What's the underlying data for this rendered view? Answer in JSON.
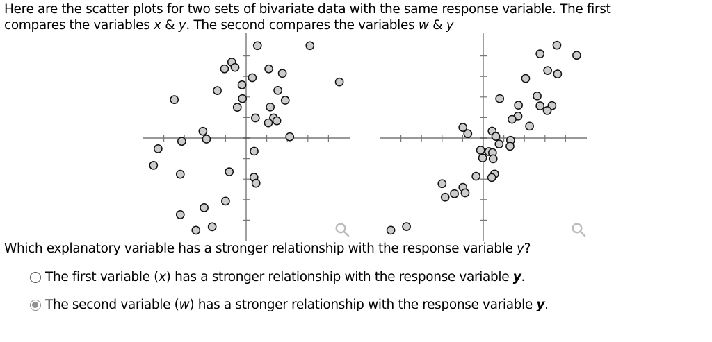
{
  "intro": {
    "line1": "Here are the scatter plots for two sets of bivariate data with the same response variable. The first",
    "line2_prefix": "compares the variables ",
    "line2_var1": "x",
    "line2_amp1": " & ",
    "line2_var2": "y",
    "line2_mid": ". The second compares the variables ",
    "line2_var3": "w",
    "line2_amp2": " & ",
    "line2_var4": "y"
  },
  "question": {
    "text_prefix": "Which explanatory variable has a stronger relationship with the response variable ",
    "text_var": "y",
    "text_suffix": "?"
  },
  "options": [
    {
      "prefix": "The first variable (",
      "var": "x",
      "suffix": ") has a stronger relationship with the response variable ",
      "resp": "y",
      "end": ".",
      "selected": false
    },
    {
      "prefix": "The second variable (",
      "var": "w",
      "suffix": ") has a stronger relationship with the response variable ",
      "resp": "y",
      "end": ".",
      "selected": true
    }
  ],
  "icons": {
    "zoom_plot1": "magnifier-icon",
    "zoom_plot2": "magnifier-icon"
  },
  "colors": {
    "marker_fill": "#cccccc",
    "marker_stroke": "#111111",
    "axis": "#777777",
    "radio_selected": "#8f8f8f",
    "zoom_icon": "#bbbbbb"
  },
  "chart_data": [
    {
      "type": "scatter",
      "title": "",
      "xlabel": "x",
      "ylabel": "y",
      "xlim": [
        -5,
        5
      ],
      "ylim": [
        -5,
        5
      ],
      "grid": false,
      "axes_through_origin": true,
      "tick_spacing": 1,
      "tick_labels": false,
      "points": [
        [
          0.55,
          4.5
        ],
        [
          3.1,
          4.5
        ],
        [
          -0.7,
          3.7
        ],
        [
          -1.05,
          3.37
        ],
        [
          -0.54,
          3.44
        ],
        [
          1.1,
          3.37
        ],
        [
          1.76,
          3.15
        ],
        [
          0.3,
          2.94
        ],
        [
          4.53,
          2.73
        ],
        [
          -0.2,
          2.59
        ],
        [
          -1.4,
          2.31
        ],
        [
          1.54,
          2.32
        ],
        [
          -3.49,
          1.87
        ],
        [
          -0.18,
          1.92
        ],
        [
          1.9,
          1.84
        ],
        [
          -0.43,
          1.5
        ],
        [
          1.17,
          1.51
        ],
        [
          0.45,
          0.98
        ],
        [
          1.33,
          0.98
        ],
        [
          1.49,
          0.84
        ],
        [
          1.08,
          0.74
        ],
        [
          -2.1,
          0.33
        ],
        [
          -1.93,
          -0.05
        ],
        [
          -3.13,
          -0.16
        ],
        [
          2.12,
          0.06
        ],
        [
          -4.28,
          -0.52
        ],
        [
          0.39,
          -0.64
        ],
        [
          -4.5,
          -1.33
        ],
        [
          -3.2,
          -1.76
        ],
        [
          -0.82,
          -1.64
        ],
        [
          0.38,
          -1.91
        ],
        [
          0.48,
          -2.2
        ],
        [
          -1.0,
          -3.07
        ],
        [
          -2.04,
          -3.39
        ],
        [
          -3.2,
          -3.73
        ],
        [
          -1.65,
          -4.32
        ],
        [
          -2.44,
          -4.49
        ]
      ]
    },
    {
      "type": "scatter",
      "title": "",
      "xlabel": "w",
      "ylabel": "y",
      "xlim": [
        -5,
        5
      ],
      "ylim": [
        -5,
        5
      ],
      "grid": false,
      "axes_through_origin": true,
      "tick_spacing": 1,
      "tick_labels": false,
      "points": [
        [
          3.58,
          4.52
        ],
        [
          4.54,
          4.03
        ],
        [
          2.76,
          4.1
        ],
        [
          3.13,
          3.29
        ],
        [
          3.61,
          3.12
        ],
        [
          2.06,
          2.9
        ],
        [
          0.8,
          1.92
        ],
        [
          2.62,
          2.05
        ],
        [
          1.71,
          1.6
        ],
        [
          2.76,
          1.57
        ],
        [
          3.34,
          1.58
        ],
        [
          3.11,
          1.34
        ],
        [
          1.69,
          1.07
        ],
        [
          1.4,
          0.91
        ],
        [
          2.25,
          0.58
        ],
        [
          -0.99,
          0.52
        ],
        [
          -0.75,
          0.21
        ],
        [
          0.43,
          0.34
        ],
        [
          0.61,
          0.08
        ],
        [
          0.77,
          -0.29
        ],
        [
          1.33,
          -0.11
        ],
        [
          1.3,
          -0.4
        ],
        [
          -0.13,
          -0.59
        ],
        [
          0.27,
          -0.66
        ],
        [
          0.45,
          -0.71
        ],
        [
          -0.03,
          -0.97
        ],
        [
          0.48,
          -1.01
        ],
        [
          -0.35,
          -1.86
        ],
        [
          0.55,
          -1.75
        ],
        [
          0.41,
          -1.92
        ],
        [
          -2.0,
          -2.22
        ],
        [
          -0.99,
          -2.4
        ],
        [
          -0.88,
          -2.67
        ],
        [
          -1.4,
          -2.71
        ],
        [
          -1.85,
          -2.88
        ],
        [
          -3.73,
          -4.31
        ],
        [
          -4.49,
          -4.49
        ]
      ]
    }
  ]
}
